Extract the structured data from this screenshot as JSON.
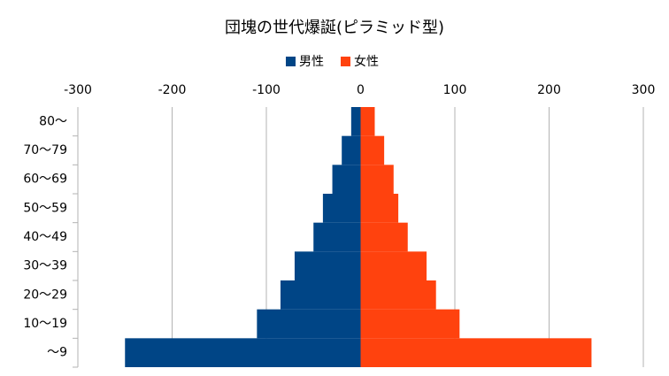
{
  "chart_data": {
    "type": "bar",
    "orientation": "horizontal",
    "stacked": true,
    "title": "団塊の世代爆誕(ピラミッド型)",
    "categories": [
      "80～",
      "70～79",
      "60～69",
      "50～59",
      "40～49",
      "30～39",
      "20～29",
      "10～19",
      "～9"
    ],
    "series": [
      {
        "name": "男性",
        "color": "#004586",
        "values": [
          -10,
          -20,
          -30,
          -40,
          -50,
          -70,
          -85,
          -110,
          -250
        ]
      },
      {
        "name": "女性",
        "color": "#ff420e",
        "values": [
          15,
          25,
          35,
          40,
          50,
          70,
          80,
          105,
          245
        ]
      }
    ],
    "xlim": [
      -300,
      300
    ],
    "xticks": [
      -300,
      -200,
      -100,
      0,
      100,
      200,
      300
    ],
    "grid": true,
    "legend": "top"
  }
}
